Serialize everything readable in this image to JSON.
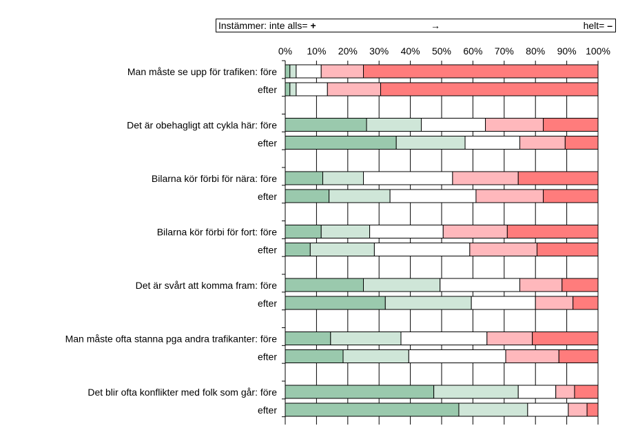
{
  "legend": {
    "left_label": "Instämmer:  inte alls= ",
    "left_symbol": "+",
    "arrow": "→",
    "right_label": "helt= ",
    "right_symbol": "–"
  },
  "colors": [
    "#9ac9ad",
    "#cfe6d8",
    "#ffffff",
    "#ffb8bc",
    "#ff7c7c"
  ],
  "chart_data": {
    "type": "bar",
    "orientation": "horizontal",
    "stacked": "percent",
    "xlim": [
      0,
      100
    ],
    "x_ticks": [
      "0%",
      "10%",
      "20%",
      "30%",
      "40%",
      "50%",
      "60%",
      "70%",
      "80%",
      "90%",
      "100%"
    ],
    "grid": true,
    "categories": [
      "Man måste se upp för trafiken: före",
      "efter",
      "Det är obehagligt att cykla här: före",
      "efter",
      "Bilarna kör förbi för nära: före",
      "efter",
      "Bilarna kör förbi för fort: före",
      "efter",
      "Det är svårt att komma fram: före",
      "efter",
      "Man måste ofta stanna pga andra trafikanter: före",
      "efter",
      "Det blir ofta konflikter med folk som går: före",
      "efter"
    ],
    "series": [
      {
        "values": [
          1.5,
          1.5,
          26,
          35.5,
          12,
          14,
          11.5,
          8,
          25,
          32,
          14.5,
          18.5,
          47.5,
          55.5
        ]
      },
      {
        "values": [
          2,
          2,
          17.5,
          22,
          13,
          19.5,
          15.5,
          20.5,
          24.5,
          27.5,
          22.5,
          21,
          27,
          22
        ]
      },
      {
        "values": [
          8,
          10,
          20.5,
          17.5,
          28.5,
          27.5,
          23.5,
          30.5,
          25.5,
          20.5,
          27.5,
          31,
          12,
          13
        ]
      },
      {
        "values": [
          13.5,
          17,
          18.5,
          14.5,
          21,
          21.5,
          20.5,
          21.5,
          13.5,
          12,
          14.5,
          17,
          6,
          6
        ]
      },
      {
        "values": [
          75,
          69.5,
          17.5,
          10.5,
          25.5,
          17.5,
          29,
          19.5,
          11.5,
          8,
          21,
          12.5,
          7.5,
          3.5
        ]
      }
    ]
  }
}
